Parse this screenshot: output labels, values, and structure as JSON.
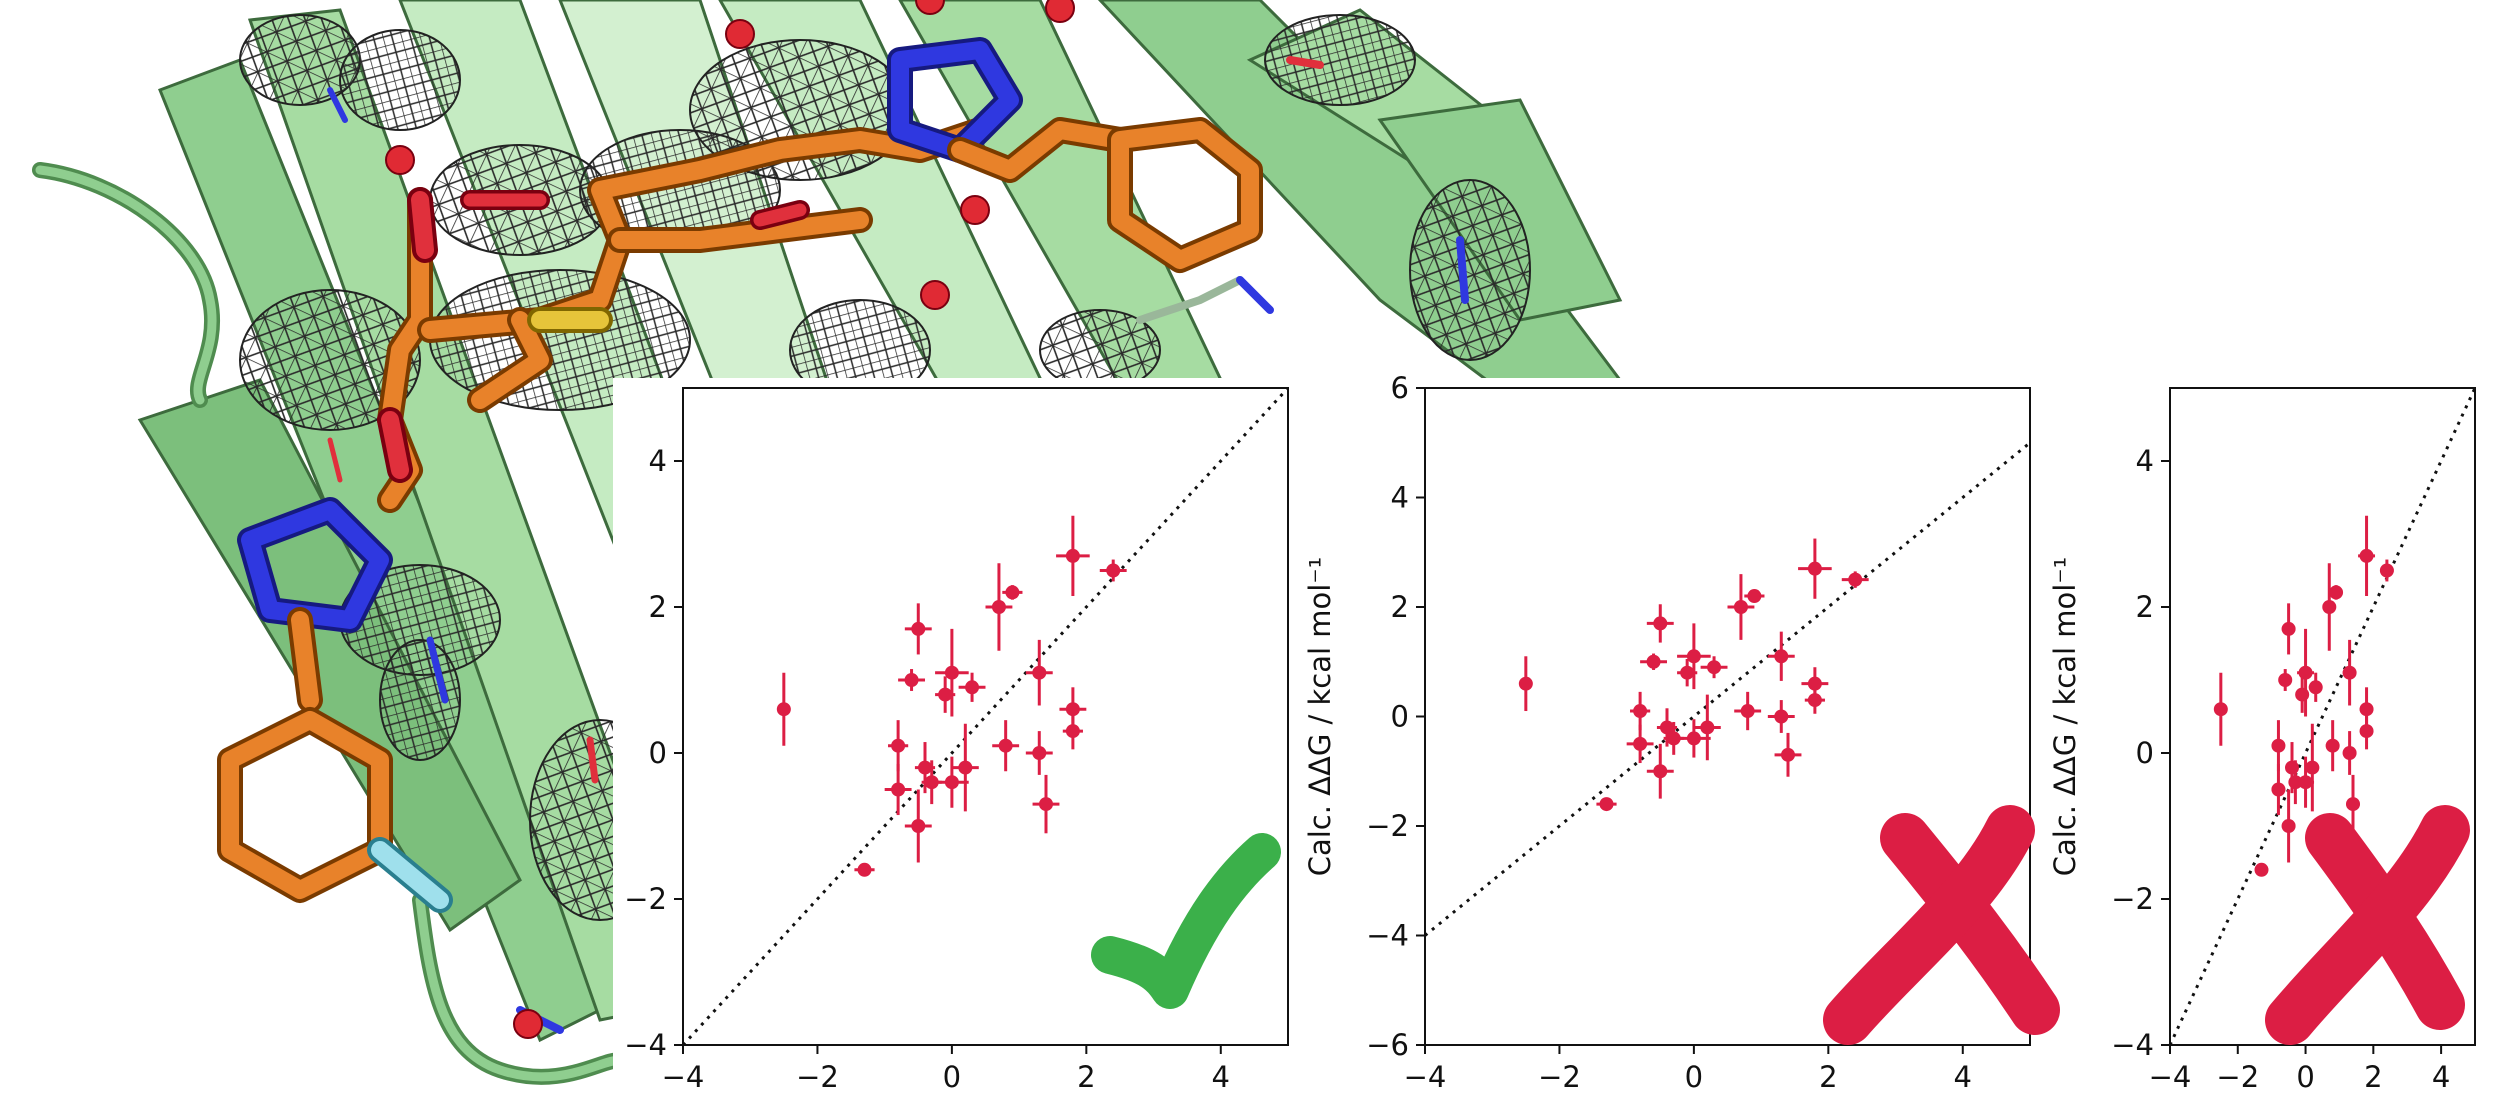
{
  "figure": {
    "background": "#ffffff",
    "protein_colors": {
      "ribbon": "#8fce8f",
      "ribbon_light": "#c5ebc2",
      "ribbon_dark": "#5f9e5f",
      "ligand": "#e8822a",
      "nitrogen": "#2f38e0",
      "oxygen": "#e0303c",
      "sulfur": "#e6c43a",
      "fluorine": "#9fe0ec",
      "mesh": "#333333",
      "water": "#e02a34"
    },
    "marker_color": "#dc1e44",
    "check_color": "#3bb04a",
    "cross_color": "#dc1e44",
    "verdicts": [
      "check-icon",
      "cross-icon",
      "cross-icon"
    ]
  },
  "chart_data": [
    {
      "type": "scatter",
      "title": "",
      "xlabel": "",
      "ylabel": "",
      "xlim": [
        -4,
        5
      ],
      "ylim": [
        -4,
        5
      ],
      "xticks": [
        "−4",
        "−2",
        "0",
        "2",
        "4"
      ],
      "yticks": [
        "−4",
        "−2",
        "0",
        "2",
        "4"
      ],
      "diagonal": "y = x (dotted)",
      "grid": false,
      "points": [
        {
          "x": -2.5,
          "y": 0.6,
          "xerr": 0.1,
          "yerr": 0.5
        },
        {
          "x": -1.3,
          "y": -1.6,
          "xerr": 0.15,
          "yerr": 0.05
        },
        {
          "x": -0.8,
          "y": 0.1,
          "xerr": 0.15,
          "yerr": 0.35
        },
        {
          "x": -0.8,
          "y": -0.5,
          "xerr": 0.2,
          "yerr": 0.35
        },
        {
          "x": -0.6,
          "y": 1.0,
          "xerr": 0.2,
          "yerr": 0.15
        },
        {
          "x": -0.5,
          "y": 1.7,
          "xerr": 0.2,
          "yerr": 0.35
        },
        {
          "x": -0.5,
          "y": -1.0,
          "xerr": 0.2,
          "yerr": 0.5
        },
        {
          "x": -0.4,
          "y": -0.2,
          "xerr": 0.15,
          "yerr": 0.35
        },
        {
          "x": -0.3,
          "y": -0.4,
          "xerr": 0.15,
          "yerr": 0.3
        },
        {
          "x": -0.1,
          "y": 0.8,
          "xerr": 0.15,
          "yerr": 0.25
        },
        {
          "x": 0.0,
          "y": 1.1,
          "xerr": 0.25,
          "yerr": 0.6
        },
        {
          "x": 0.0,
          "y": -0.4,
          "xerr": 0.25,
          "yerr": 0.35
        },
        {
          "x": 0.2,
          "y": -0.2,
          "xerr": 0.2,
          "yerr": 0.6
        },
        {
          "x": 0.3,
          "y": 0.9,
          "xerr": 0.2,
          "yerr": 0.2
        },
        {
          "x": 0.7,
          "y": 2.0,
          "xerr": 0.2,
          "yerr": 0.6
        },
        {
          "x": 0.8,
          "y": 0.1,
          "xerr": 0.2,
          "yerr": 0.35
        },
        {
          "x": 0.9,
          "y": 2.2,
          "xerr": 0.15,
          "yerr": 0.1
        },
        {
          "x": 1.3,
          "y": 0.0,
          "xerr": 0.2,
          "yerr": 0.3
        },
        {
          "x": 1.3,
          "y": 1.1,
          "xerr": 0.2,
          "yerr": 0.45
        },
        {
          "x": 1.4,
          "y": -0.7,
          "xerr": 0.2,
          "yerr": 0.4
        },
        {
          "x": 1.8,
          "y": 2.7,
          "xerr": 0.25,
          "yerr": 0.55
        },
        {
          "x": 1.8,
          "y": 0.6,
          "xerr": 0.2,
          "yerr": 0.3
        },
        {
          "x": 1.8,
          "y": 0.3,
          "xerr": 0.15,
          "yerr": 0.25
        },
        {
          "x": 2.4,
          "y": 2.5,
          "xerr": 0.2,
          "yerr": 0.15
        }
      ]
    },
    {
      "type": "scatter",
      "title": "",
      "xlabel": "",
      "ylabel": "Calc. ΔΔG / kcal mol⁻¹",
      "xlim": [
        -4,
        5
      ],
      "ylim": [
        -6,
        6
      ],
      "xticks": [
        "−4",
        "−2",
        "0",
        "2",
        "4"
      ],
      "yticks": [
        "−6",
        "−4",
        "−2",
        "0",
        "2",
        "4",
        "6"
      ],
      "diagonal": "y = x (dotted)",
      "grid": false,
      "points": [
        {
          "x": -2.5,
          "y": 0.6,
          "xerr": 0.1,
          "yerr": 0.5
        },
        {
          "x": -1.3,
          "y": -1.6,
          "xerr": 0.15,
          "yerr": 0.05
        },
        {
          "x": -0.8,
          "y": 0.1,
          "xerr": 0.15,
          "yerr": 0.35
        },
        {
          "x": -0.8,
          "y": -0.5,
          "xerr": 0.2,
          "yerr": 0.35
        },
        {
          "x": -0.6,
          "y": 1.0,
          "xerr": 0.2,
          "yerr": 0.15
        },
        {
          "x": -0.5,
          "y": 1.7,
          "xerr": 0.2,
          "yerr": 0.35
        },
        {
          "x": -0.5,
          "y": -1.0,
          "xerr": 0.2,
          "yerr": 0.5
        },
        {
          "x": -0.4,
          "y": -0.2,
          "xerr": 0.15,
          "yerr": 0.35
        },
        {
          "x": -0.3,
          "y": -0.4,
          "xerr": 0.15,
          "yerr": 0.3
        },
        {
          "x": -0.1,
          "y": 0.8,
          "xerr": 0.15,
          "yerr": 0.25
        },
        {
          "x": 0.0,
          "y": 1.1,
          "xerr": 0.25,
          "yerr": 0.6
        },
        {
          "x": 0.0,
          "y": -0.4,
          "xerr": 0.25,
          "yerr": 0.35
        },
        {
          "x": 0.2,
          "y": -0.2,
          "xerr": 0.2,
          "yerr": 0.6
        },
        {
          "x": 0.3,
          "y": 0.9,
          "xerr": 0.2,
          "yerr": 0.2
        },
        {
          "x": 0.7,
          "y": 2.0,
          "xerr": 0.2,
          "yerr": 0.6
        },
        {
          "x": 0.8,
          "y": 0.1,
          "xerr": 0.2,
          "yerr": 0.35
        },
        {
          "x": 0.9,
          "y": 2.2,
          "xerr": 0.15,
          "yerr": 0.1
        },
        {
          "x": 1.3,
          "y": 0.0,
          "xerr": 0.2,
          "yerr": 0.3
        },
        {
          "x": 1.3,
          "y": 1.1,
          "xerr": 0.2,
          "yerr": 0.45
        },
        {
          "x": 1.4,
          "y": -0.7,
          "xerr": 0.2,
          "yerr": 0.4
        },
        {
          "x": 1.8,
          "y": 2.7,
          "xerr": 0.25,
          "yerr": 0.55
        },
        {
          "x": 1.8,
          "y": 0.6,
          "xerr": 0.2,
          "yerr": 0.3
        },
        {
          "x": 1.8,
          "y": 0.3,
          "xerr": 0.15,
          "yerr": 0.25
        },
        {
          "x": 2.4,
          "y": 2.5,
          "xerr": 0.2,
          "yerr": 0.15
        }
      ]
    },
    {
      "type": "scatter",
      "title": "",
      "xlabel": "",
      "ylabel": "Calc. ΔΔG / kcal mol⁻¹",
      "xlim": [
        -4,
        5
      ],
      "ylim": [
        -4,
        5
      ],
      "xticks": [
        "−4",
        "−2",
        "0",
        "2",
        "4"
      ],
      "yticks": [
        "−4",
        "−2",
        "0",
        "2",
        "4"
      ],
      "diagonal": "y = x (dotted)",
      "grid": false,
      "points": [
        {
          "x": -2.5,
          "y": 0.6,
          "xerr": 0.1,
          "yerr": 0.5
        },
        {
          "x": -1.3,
          "y": -1.6,
          "xerr": 0.15,
          "yerr": 0.05
        },
        {
          "x": -0.8,
          "y": 0.1,
          "xerr": 0.15,
          "yerr": 0.35
        },
        {
          "x": -0.8,
          "y": -0.5,
          "xerr": 0.2,
          "yerr": 0.35
        },
        {
          "x": -0.6,
          "y": 1.0,
          "xerr": 0.2,
          "yerr": 0.15
        },
        {
          "x": -0.5,
          "y": 1.7,
          "xerr": 0.2,
          "yerr": 0.35
        },
        {
          "x": -0.5,
          "y": -1.0,
          "xerr": 0.2,
          "yerr": 0.5
        },
        {
          "x": -0.4,
          "y": -0.2,
          "xerr": 0.15,
          "yerr": 0.35
        },
        {
          "x": -0.3,
          "y": -0.4,
          "xerr": 0.15,
          "yerr": 0.3
        },
        {
          "x": -0.1,
          "y": 0.8,
          "xerr": 0.15,
          "yerr": 0.25
        },
        {
          "x": 0.0,
          "y": 1.1,
          "xerr": 0.25,
          "yerr": 0.6
        },
        {
          "x": 0.0,
          "y": -0.4,
          "xerr": 0.25,
          "yerr": 0.35
        },
        {
          "x": 0.2,
          "y": -0.2,
          "xerr": 0.2,
          "yerr": 0.6
        },
        {
          "x": 0.3,
          "y": 0.9,
          "xerr": 0.2,
          "yerr": 0.2
        },
        {
          "x": 0.7,
          "y": 2.0,
          "xerr": 0.2,
          "yerr": 0.6
        },
        {
          "x": 0.8,
          "y": 0.1,
          "xerr": 0.2,
          "yerr": 0.35
        },
        {
          "x": 0.9,
          "y": 2.2,
          "xerr": 0.15,
          "yerr": 0.1
        },
        {
          "x": 1.3,
          "y": 0.0,
          "xerr": 0.2,
          "yerr": 0.3
        },
        {
          "x": 1.3,
          "y": 1.1,
          "xerr": 0.2,
          "yerr": 0.45
        },
        {
          "x": 1.4,
          "y": -0.7,
          "xerr": 0.2,
          "yerr": 0.4
        },
        {
          "x": 1.8,
          "y": 2.7,
          "xerr": 0.25,
          "yerr": 0.55
        },
        {
          "x": 1.8,
          "y": 0.6,
          "xerr": 0.2,
          "yerr": 0.3
        },
        {
          "x": 1.8,
          "y": 0.3,
          "xerr": 0.15,
          "yerr": 0.25
        },
        {
          "x": 2.4,
          "y": 2.5,
          "xerr": 0.2,
          "yerr": 0.15
        }
      ]
    }
  ]
}
